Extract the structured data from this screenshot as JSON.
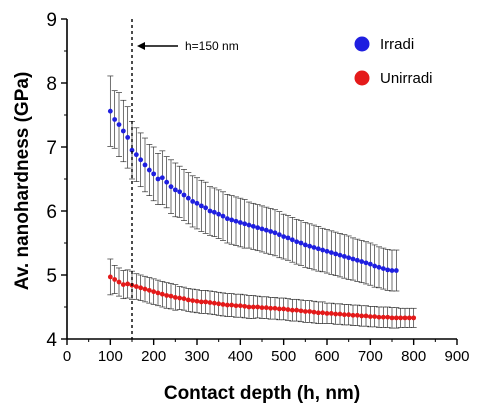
{
  "chart_data": {
    "type": "scatter",
    "xlabel": "Contact depth (h, nm)",
    "ylabel": "Av. nanohardness (GPa)",
    "xlim": [
      0,
      900
    ],
    "ylim": [
      4,
      9
    ],
    "xticks": [
      0,
      100,
      200,
      300,
      400,
      500,
      600,
      700,
      800,
      900
    ],
    "yticks": [
      4,
      5,
      6,
      7,
      8,
      9
    ],
    "grid": false,
    "legend_position": "top-right",
    "annotation": {
      "label": "h=150 nm",
      "x": 150
    },
    "series": [
      {
        "name": "Irradi",
        "color": "#1f1fe0",
        "errorbars": true,
        "points": [
          [
            100,
            7.56,
            0.55
          ],
          [
            110,
            7.43,
            0.45
          ],
          [
            120,
            7.35,
            0.5
          ],
          [
            130,
            7.25,
            0.48
          ],
          [
            140,
            7.15,
            0.48
          ],
          [
            150,
            6.95,
            0.45
          ],
          [
            160,
            6.88,
            0.42
          ],
          [
            170,
            6.8,
            0.42
          ],
          [
            180,
            6.72,
            0.42
          ],
          [
            190,
            6.64,
            0.4
          ],
          [
            200,
            6.58,
            0.42
          ],
          [
            210,
            6.5,
            0.4
          ],
          [
            220,
            6.52,
            0.42
          ],
          [
            230,
            6.45,
            0.4
          ],
          [
            240,
            6.38,
            0.42
          ],
          [
            250,
            6.33,
            0.42
          ],
          [
            260,
            6.3,
            0.4
          ],
          [
            270,
            6.25,
            0.4
          ],
          [
            280,
            6.2,
            0.4
          ],
          [
            290,
            6.15,
            0.4
          ],
          [
            300,
            6.12,
            0.4
          ],
          [
            310,
            6.08,
            0.4
          ],
          [
            320,
            6.05,
            0.4
          ],
          [
            330,
            6.0,
            0.38
          ],
          [
            340,
            5.98,
            0.38
          ],
          [
            350,
            5.95,
            0.38
          ],
          [
            360,
            5.92,
            0.38
          ],
          [
            370,
            5.88,
            0.38
          ],
          [
            380,
            5.86,
            0.38
          ],
          [
            390,
            5.84,
            0.38
          ],
          [
            400,
            5.82,
            0.38
          ],
          [
            410,
            5.8,
            0.38
          ],
          [
            420,
            5.78,
            0.36
          ],
          [
            430,
            5.76,
            0.36
          ],
          [
            440,
            5.74,
            0.36
          ],
          [
            450,
            5.72,
            0.36
          ],
          [
            460,
            5.7,
            0.36
          ],
          [
            470,
            5.68,
            0.36
          ],
          [
            480,
            5.66,
            0.36
          ],
          [
            490,
            5.63,
            0.36
          ],
          [
            500,
            5.6,
            0.35
          ],
          [
            510,
            5.58,
            0.35
          ],
          [
            520,
            5.55,
            0.35
          ],
          [
            530,
            5.52,
            0.35
          ],
          [
            540,
            5.5,
            0.35
          ],
          [
            550,
            5.47,
            0.35
          ],
          [
            560,
            5.45,
            0.35
          ],
          [
            570,
            5.43,
            0.35
          ],
          [
            580,
            5.41,
            0.35
          ],
          [
            590,
            5.39,
            0.34
          ],
          [
            600,
            5.37,
            0.34
          ],
          [
            610,
            5.35,
            0.34
          ],
          [
            620,
            5.33,
            0.34
          ],
          [
            630,
            5.31,
            0.34
          ],
          [
            640,
            5.29,
            0.34
          ],
          [
            650,
            5.27,
            0.34
          ],
          [
            660,
            5.25,
            0.33
          ],
          [
            670,
            5.23,
            0.33
          ],
          [
            680,
            5.21,
            0.33
          ],
          [
            690,
            5.19,
            0.33
          ],
          [
            700,
            5.17,
            0.33
          ],
          [
            710,
            5.14,
            0.33
          ],
          [
            720,
            5.12,
            0.32
          ],
          [
            730,
            5.1,
            0.32
          ],
          [
            740,
            5.08,
            0.32
          ],
          [
            750,
            5.07,
            0.32
          ],
          [
            760,
            5.07,
            0.32
          ]
        ]
      },
      {
        "name": "Unirradi",
        "color": "#e41a1a",
        "errorbars": true,
        "points": [
          [
            100,
            4.97,
            0.28
          ],
          [
            110,
            4.93,
            0.22
          ],
          [
            120,
            4.89,
            0.22
          ],
          [
            130,
            4.85,
            0.22
          ],
          [
            140,
            4.86,
            0.22
          ],
          [
            150,
            4.84,
            0.22
          ],
          [
            160,
            4.82,
            0.2
          ],
          [
            170,
            4.8,
            0.2
          ],
          [
            180,
            4.78,
            0.2
          ],
          [
            190,
            4.76,
            0.2
          ],
          [
            200,
            4.74,
            0.2
          ],
          [
            210,
            4.72,
            0.2
          ],
          [
            220,
            4.7,
            0.2
          ],
          [
            230,
            4.68,
            0.2
          ],
          [
            240,
            4.67,
            0.2
          ],
          [
            250,
            4.65,
            0.2
          ],
          [
            260,
            4.64,
            0.18
          ],
          [
            270,
            4.63,
            0.18
          ],
          [
            280,
            4.61,
            0.18
          ],
          [
            290,
            4.6,
            0.18
          ],
          [
            300,
            4.59,
            0.18
          ],
          [
            310,
            4.58,
            0.18
          ],
          [
            320,
            4.58,
            0.18
          ],
          [
            330,
            4.57,
            0.18
          ],
          [
            340,
            4.56,
            0.18
          ],
          [
            350,
            4.55,
            0.18
          ],
          [
            360,
            4.54,
            0.18
          ],
          [
            370,
            4.53,
            0.18
          ],
          [
            380,
            4.53,
            0.18
          ],
          [
            390,
            4.52,
            0.18
          ],
          [
            400,
            4.52,
            0.18
          ],
          [
            410,
            4.51,
            0.18
          ],
          [
            420,
            4.5,
            0.18
          ],
          [
            430,
            4.5,
            0.18
          ],
          [
            440,
            4.5,
            0.17
          ],
          [
            450,
            4.49,
            0.17
          ],
          [
            460,
            4.49,
            0.17
          ],
          [
            470,
            4.48,
            0.17
          ],
          [
            480,
            4.48,
            0.17
          ],
          [
            490,
            4.47,
            0.17
          ],
          [
            500,
            4.47,
            0.17
          ],
          [
            510,
            4.46,
            0.17
          ],
          [
            520,
            4.45,
            0.17
          ],
          [
            530,
            4.45,
            0.17
          ],
          [
            540,
            4.44,
            0.17
          ],
          [
            550,
            4.43,
            0.17
          ],
          [
            560,
            4.43,
            0.17
          ],
          [
            570,
            4.42,
            0.17
          ],
          [
            580,
            4.41,
            0.17
          ],
          [
            590,
            4.41,
            0.17
          ],
          [
            600,
            4.4,
            0.16
          ],
          [
            610,
            4.4,
            0.16
          ],
          [
            620,
            4.39,
            0.16
          ],
          [
            630,
            4.39,
            0.16
          ],
          [
            640,
            4.38,
            0.16
          ],
          [
            650,
            4.38,
            0.16
          ],
          [
            660,
            4.37,
            0.16
          ],
          [
            670,
            4.37,
            0.16
          ],
          [
            680,
            4.36,
            0.16
          ],
          [
            690,
            4.36,
            0.16
          ],
          [
            700,
            4.35,
            0.16
          ],
          [
            710,
            4.35,
            0.16
          ],
          [
            720,
            4.34,
            0.16
          ],
          [
            730,
            4.34,
            0.16
          ],
          [
            740,
            4.34,
            0.16
          ],
          [
            750,
            4.33,
            0.16
          ],
          [
            760,
            4.33,
            0.16
          ],
          [
            770,
            4.33,
            0.15
          ],
          [
            780,
            4.33,
            0.15
          ],
          [
            790,
            4.33,
            0.15
          ],
          [
            800,
            4.33,
            0.15
          ]
        ]
      }
    ]
  }
}
